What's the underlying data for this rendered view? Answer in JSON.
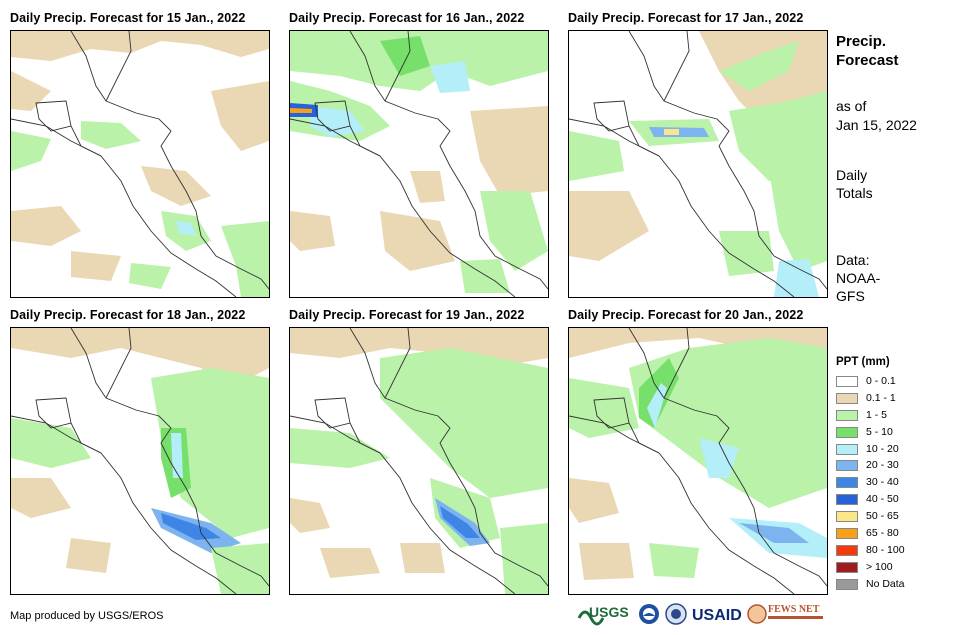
{
  "panels": [
    {
      "title": "Daily Precip. Forecast for 15 Jan., 2022"
    },
    {
      "title": "Daily Precip. Forecast for 16 Jan., 2022"
    },
    {
      "title": "Daily Precip. Forecast for 17 Jan., 2022"
    },
    {
      "title": "Daily Precip. Forecast for 18 Jan., 2022"
    },
    {
      "title": "Daily Precip. Forecast for 19 Jan., 2022"
    },
    {
      "title": "Daily Precip. Forecast for 20 Jan., 2022"
    }
  ],
  "sidebar": {
    "heading_1": "Precip.",
    "heading_2": "Forecast",
    "asof_1": "as of",
    "asof_2": "Jan 15, 2022",
    "totals_1": "Daily",
    "totals_2": "Totals",
    "source_1": "Data:",
    "source_2": "NOAA-",
    "source_3": "GFS"
  },
  "legend": {
    "title": "PPT (mm)",
    "items": [
      {
        "label": "0 - 0.1",
        "color": "#ffffff"
      },
      {
        "label": "0.1 - 1",
        "color": "#ead7b3"
      },
      {
        "label": "1 - 5",
        "color": "#b9f2a8"
      },
      {
        "label": "5 - 10",
        "color": "#77e06a"
      },
      {
        "label": "10 - 20",
        "color": "#b4eef8"
      },
      {
        "label": "20 - 30",
        "color": "#7db3ee"
      },
      {
        "label": "30 - 40",
        "color": "#3e85e6"
      },
      {
        "label": "40 - 50",
        "color": "#2862d8"
      },
      {
        "label": "50 - 65",
        "color": "#fde68a"
      },
      {
        "label": "65 - 80",
        "color": "#f8a019"
      },
      {
        "label": "80 - 100",
        "color": "#f53b0c"
      },
      {
        "label": "> 100",
        "color": "#a01c1c"
      },
      {
        "label": "No Data",
        "color": "#999999"
      }
    ]
  },
  "footer": {
    "credit": "Map produced by USGS/EROS"
  },
  "logos": {
    "usgs": "USGS",
    "usaid": "USAID",
    "fewsnet": "FEWS NET"
  }
}
